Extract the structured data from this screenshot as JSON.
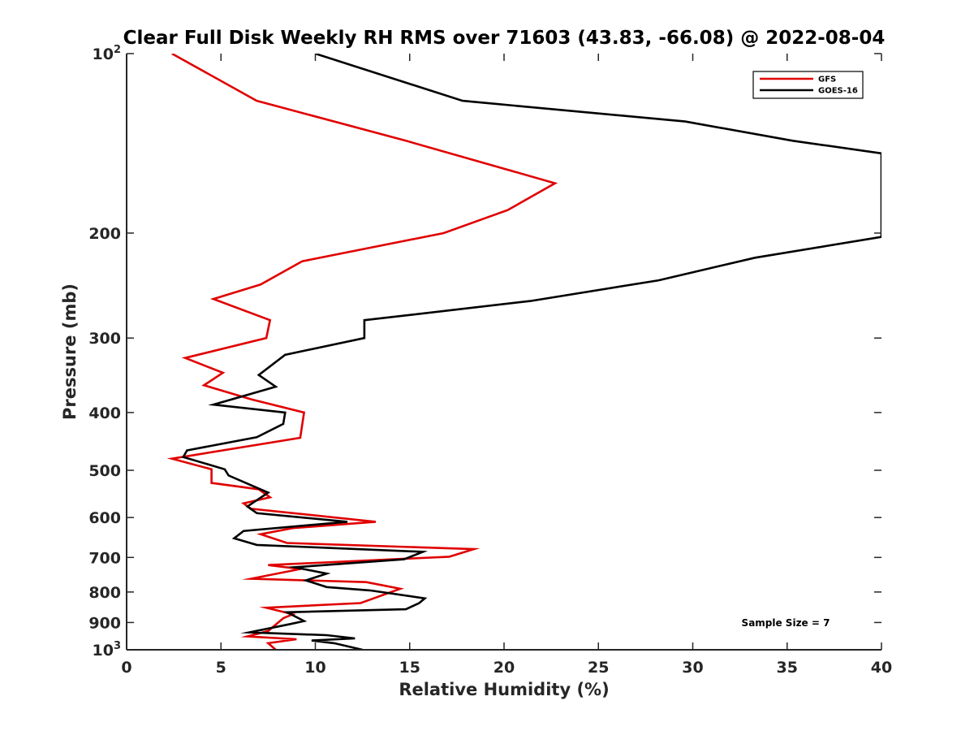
{
  "chart_data": {
    "type": "line",
    "title": "Clear Full Disk Weekly RH RMS over 71603 (43.83, -66.08) @ 2022-08-04",
    "xlabel": "Relative Humidity (%)",
    "ylabel": "Pressure (mb)",
    "xlim": [
      0,
      40
    ],
    "ylim": [
      100,
      1000
    ],
    "y_scale": "log",
    "y_reversed": true,
    "grid": false,
    "legend_position": "top-right",
    "x_ticks": [
      "0",
      "5",
      "10",
      "15",
      "20",
      "25",
      "30",
      "35",
      "40"
    ],
    "y_ticks": [
      {
        "value": 100,
        "base": "10",
        "sup": "2"
      },
      {
        "value": 200,
        "label": "200"
      },
      {
        "value": 300,
        "label": "300"
      },
      {
        "value": 400,
        "label": "400"
      },
      {
        "value": 500,
        "label": "500"
      },
      {
        "value": 600,
        "label": "600"
      },
      {
        "value": 700,
        "label": "700"
      },
      {
        "value": 800,
        "label": "800"
      },
      {
        "value": 900,
        "label": "900"
      },
      {
        "value": 1000,
        "base": "10",
        "sup": "3"
      }
    ],
    "annotation": "Sample Size = 7",
    "series": [
      {
        "name": "GFS",
        "color": "#e00000",
        "points": [
          [
            2.4,
            100
          ],
          [
            6.9,
            120
          ],
          [
            14.8,
            140
          ],
          [
            22.7,
            165
          ],
          [
            20.2,
            183
          ],
          [
            16.8,
            200
          ],
          [
            9.3,
            223
          ],
          [
            7.1,
            244
          ],
          [
            4.6,
            258
          ],
          [
            7.6,
            280
          ],
          [
            7.4,
            300
          ],
          [
            3.1,
            324
          ],
          [
            5.1,
            343
          ],
          [
            4.1,
            360
          ],
          [
            6.6,
            380
          ],
          [
            9.4,
            400
          ],
          [
            9.2,
            441
          ],
          [
            2.4,
            478
          ],
          [
            4.5,
            498
          ],
          [
            4.5,
            525
          ],
          [
            7.0,
            538
          ],
          [
            7.6,
            555
          ],
          [
            6.2,
            568
          ],
          [
            6.6,
            580
          ],
          [
            13.2,
            610
          ],
          [
            8.8,
            625
          ],
          [
            7.1,
            640
          ],
          [
            8.5,
            662
          ],
          [
            18.4,
            678
          ],
          [
            17.1,
            698
          ],
          [
            7.5,
            721
          ],
          [
            9.2,
            732
          ],
          [
            6.6,
            760
          ],
          [
            12.7,
            770
          ],
          [
            14.5,
            790
          ],
          [
            12.4,
            835
          ],
          [
            7.4,
            850
          ],
          [
            8.8,
            872
          ],
          [
            8.3,
            885
          ],
          [
            7.5,
            930
          ],
          [
            6.4,
            950
          ],
          [
            9.0,
            960
          ],
          [
            7.5,
            975
          ],
          [
            7.9,
            1000
          ]
        ]
      },
      {
        "name": "GOES-16",
        "color": "#000000",
        "points": [
          [
            10.0,
            100
          ],
          [
            17.8,
            120
          ],
          [
            29.6,
            130
          ],
          [
            35.3,
            140
          ],
          [
            40.0,
            147
          ],
          [
            40.0,
            203
          ],
          [
            33.3,
            220
          ],
          [
            28.2,
            240
          ],
          [
            21.4,
            260
          ],
          [
            12.6,
            280
          ],
          [
            12.6,
            300
          ],
          [
            8.4,
            320
          ],
          [
            7.0,
            346
          ],
          [
            7.9,
            362
          ],
          [
            4.6,
            388
          ],
          [
            8.4,
            400
          ],
          [
            8.3,
            418
          ],
          [
            6.9,
            440
          ],
          [
            3.2,
            463
          ],
          [
            3.0,
            475
          ],
          [
            5.2,
            498
          ],
          [
            5.4,
            510
          ],
          [
            7.5,
            545
          ],
          [
            6.4,
            575
          ],
          [
            6.9,
            590
          ],
          [
            11.7,
            610
          ],
          [
            6.2,
            632
          ],
          [
            5.7,
            650
          ],
          [
            6.9,
            667
          ],
          [
            15.7,
            685
          ],
          [
            14.7,
            705
          ],
          [
            8.9,
            727
          ],
          [
            10.6,
            745
          ],
          [
            9.5,
            765
          ],
          [
            10.6,
            785
          ],
          [
            12.9,
            795
          ],
          [
            15.8,
            820
          ],
          [
            15.5,
            835
          ],
          [
            14.8,
            855
          ],
          [
            8.5,
            865
          ],
          [
            9.4,
            895
          ],
          [
            8.7,
            905
          ],
          [
            6.5,
            935
          ],
          [
            10.6,
            945
          ],
          [
            12.1,
            957
          ],
          [
            9.8,
            965
          ],
          [
            11.0,
            975
          ],
          [
            12.5,
            1000
          ]
        ]
      }
    ]
  }
}
